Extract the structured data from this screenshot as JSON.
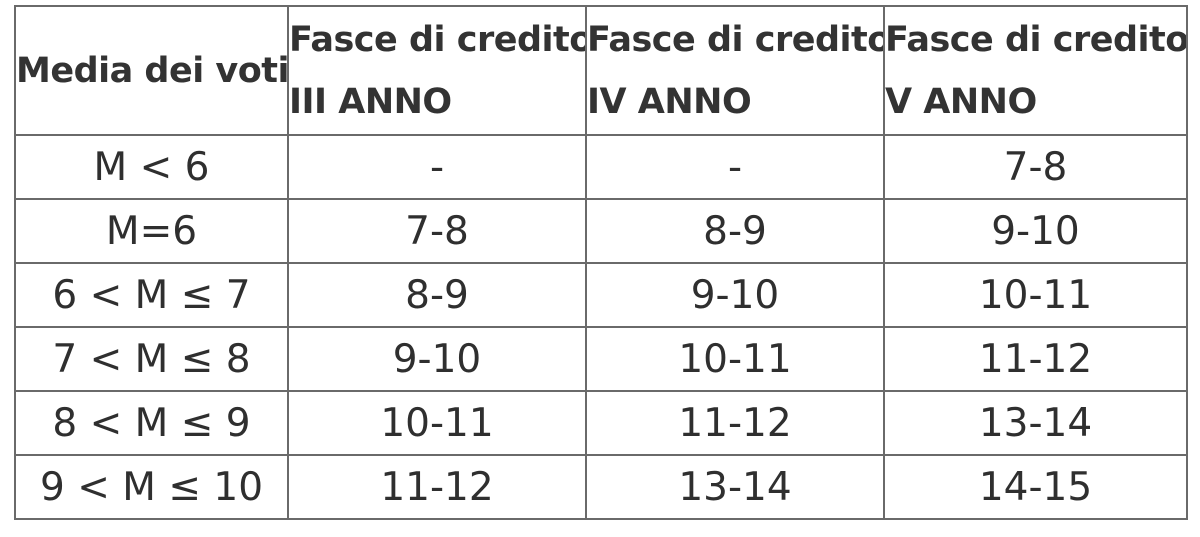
{
  "table": {
    "headers": [
      {
        "line1": "Media dei voti"
      },
      {
        "line1": "Fasce di credito",
        "line2": "III ANNO"
      },
      {
        "line1": "Fasce di credito",
        "line2": "IV ANNO"
      },
      {
        "line1": "Fasce di credito",
        "line2": "V ANNO"
      }
    ],
    "rows": [
      [
        "M < 6",
        "-",
        "-",
        "7-8"
      ],
      [
        "M=6",
        "7-8",
        "8-9",
        "9-10"
      ],
      [
        "6 < M ≤ 7",
        "8-9",
        "9-10",
        "10-11"
      ],
      [
        "7 < M ≤ 8",
        "9-10",
        "10-11",
        "11-12"
      ],
      [
        "8 < M ≤ 9",
        "10-11",
        "11-12",
        "13-14"
      ],
      [
        "9 < M ≤ 10",
        "11-12",
        "13-14",
        "14-15"
      ]
    ]
  }
}
